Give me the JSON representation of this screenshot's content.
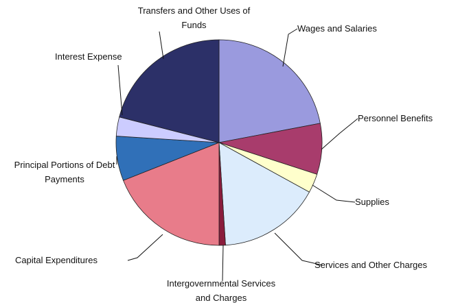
{
  "chart_data": {
    "type": "pie",
    "categories": [
      "Wages and Salaries",
      "Personnel Benefits",
      "Supplies",
      "Services and Other Charges",
      "Intergovernmental Services and Charges",
      "Capital Expenditures",
      "Principal Portions of Debt Payments",
      "Interest Expense",
      "Transfers and Other Uses of Funds"
    ],
    "values": [
      22,
      8,
      3,
      16,
      1,
      19,
      7,
      3,
      21
    ],
    "colors": [
      "#9a9ade",
      "#a83c6c",
      "#ffffcc",
      "#dcecfc",
      "#8a1c3c",
      "#e87c8a",
      "#3070b8",
      "#ccccff",
      "#2c3068"
    ]
  }
}
